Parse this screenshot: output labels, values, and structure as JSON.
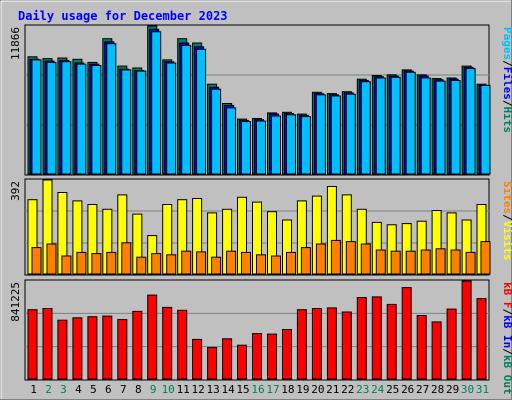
{
  "chart_data": {
    "type": "bar",
    "title": "Daily usage for December 2023",
    "categories": [
      "1",
      "2",
      "3",
      "4",
      "5",
      "6",
      "7",
      "8",
      "9",
      "10",
      "11",
      "12",
      "13",
      "14",
      "15",
      "16",
      "17",
      "18",
      "19",
      "20",
      "21",
      "22",
      "23",
      "24",
      "25",
      "26",
      "27",
      "28",
      "29",
      "30",
      "31"
    ],
    "weekend_days": [
      "2",
      "3",
      "9",
      "10",
      "16",
      "17",
      "23",
      "24",
      "30",
      "31"
    ],
    "panels": [
      {
        "id": "hits",
        "ymax_label": "11866",
        "ymax": 11866,
        "series": [
          {
            "name": "Hits",
            "color": "#00805c",
            "values": [
              9400,
              9250,
              9300,
              9200,
              8950,
              10850,
              8650,
              8500,
              11866,
              9150,
              10850,
              10500,
              7200,
              5650,
              4400,
              4450,
              4900,
              4950,
              4800,
              6550,
              6450,
              6600,
              7600,
              7900,
              7950,
              8350,
              7950,
              7650,
              7700,
              8650,
              7200
            ]
          },
          {
            "name": "Files",
            "color": "#0000ff",
            "values": [
              9200,
              9050,
              9100,
              8900,
              8800,
              10600,
              8400,
              8300,
              11600,
              9000,
              10500,
              10200,
              6950,
              5500,
              4300,
              4350,
              4800,
              4850,
              4700,
              6450,
              6350,
              6500,
              7500,
              7800,
              7850,
              8250,
              7850,
              7550,
              7600,
              8550,
              7100
            ]
          },
          {
            "name": "Pages",
            "color": "#00bfff",
            "values": [
              9150,
              8950,
              9000,
              8800,
              8700,
              10450,
              8350,
              8250,
              11400,
              8900,
              10300,
              10000,
              6800,
              5300,
              4200,
              4250,
              4650,
              4750,
              4600,
              6350,
              6250,
              6400,
              7400,
              7700,
              7750,
              8150,
              7700,
              7450,
              7500,
              8450,
              7100
            ]
          }
        ],
        "right_labels": [
          {
            "text": "Pages",
            "color": "#00bfff"
          },
          {
            "text": "/",
            "color": "#000000"
          },
          {
            "text": "Files",
            "color": "#0000ff"
          },
          {
            "text": "/",
            "color": "#000000"
          },
          {
            "text": "Hits",
            "color": "#00805c"
          }
        ]
      },
      {
        "id": "visits",
        "ymax_label": "392",
        "ymax": 392,
        "series": [
          {
            "name": "Visits",
            "color": "#ffff00",
            "values": [
              310,
              392,
              340,
              305,
              290,
              270,
              330,
              250,
              160,
              290,
              310,
              315,
              255,
              270,
              320,
              300,
              260,
              225,
              305,
              325,
              365,
              330,
              270,
              215,
              205,
              210,
              220,
              265,
              255,
              225,
              290
            ]
          },
          {
            "name": "Sites",
            "color": "#ff8000",
            "values": [
              110,
              125,
              75,
              90,
              85,
              90,
              130,
              70,
              85,
              80,
              95,
              92,
              70,
              95,
              90,
              80,
              75,
              90,
              110,
              125,
              140,
              135,
              125,
              100,
              95,
              95,
              100,
              105,
              100,
              90,
              135
            ]
          }
        ],
        "right_labels": [
          {
            "text": "Sites",
            "color": "#ff8000"
          },
          {
            "text": "/",
            "color": "#000000"
          },
          {
            "text": "Visits",
            "color": "#ffff00"
          }
        ]
      },
      {
        "id": "kbytes",
        "ymax_label": "841225",
        "ymax": 841225,
        "series": [
          {
            "name": "KB F",
            "color": "#ff0000",
            "values": [
              595000,
              605000,
              505000,
              525000,
              535000,
              540000,
              510000,
              580000,
              720000,
              615000,
              590000,
              340000,
              270000,
              345000,
              290000,
              390000,
              385000,
              425000,
              595000,
              605000,
              610000,
              575000,
              700000,
              705000,
              640000,
              785000,
              545000,
              490000,
              600000,
              841225,
              690000
            ]
          }
        ],
        "right_labels": [
          {
            "text": "kB F",
            "color": "#ff0000"
          },
          {
            "text": "/",
            "color": "#000000"
          },
          {
            "text": "kB In",
            "color": "#0000ff"
          },
          {
            "text": "/",
            "color": "#000000"
          },
          {
            "text": "kB Out",
            "color": "#00805c"
          }
        ]
      }
    ],
    "colors": {
      "background": "#c0c0c0",
      "plot_bg": "#c0c0c0",
      "title": "#0000ff",
      "weekday_tick": "#000000",
      "weekend_tick": "#00805c",
      "gridline": "#808080"
    }
  }
}
